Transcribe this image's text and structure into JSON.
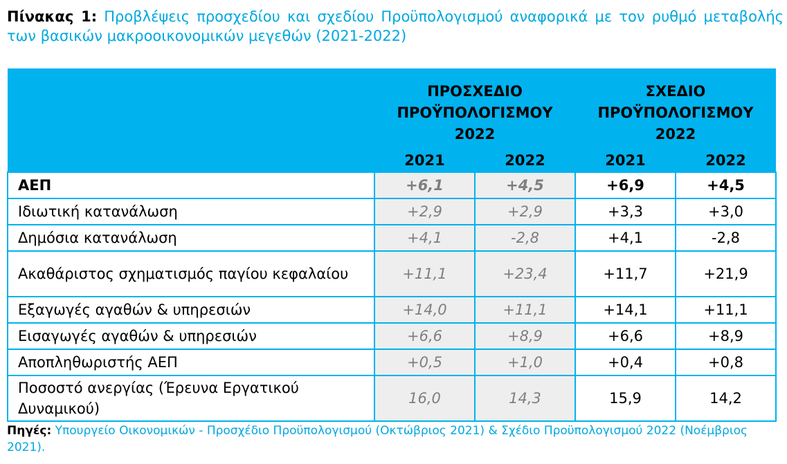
{
  "title": {
    "label": "Πίνακας 1:",
    "text": "Προβλέψεις προσχεδίου και σχεδίου Προϋπολογισμού αναφορικά με τον ρυθμό μεταβολής των βασικών μακροοικονομικών μεγεθών (2021-2022)"
  },
  "table": {
    "group_draft": "ΠΡΟΣΧΕΔΙΟ ΠΡΟΫΠΟΛΟΓΙΣΜΟΥ 2022",
    "group_final": "ΣΧΕΔΙΟ ΠΡΟΫΠΟΛΟΓΙΣΜΟΥ 2022",
    "years": [
      "2021",
      "2022",
      "2021",
      "2022"
    ],
    "rows": [
      {
        "label": "ΑΕΠ",
        "draft_2021": "+6,1",
        "draft_2022": "+4,5",
        "final_2021": "+6,9",
        "final_2022": "+4,5"
      },
      {
        "label": "Ιδιωτική κατανάλωση",
        "draft_2021": "+2,9",
        "draft_2022": "+2,9",
        "final_2021": "+3,3",
        "final_2022": "+3,0"
      },
      {
        "label": "Δημόσια κατανάλωση",
        "draft_2021": "+4,1",
        "draft_2022": "-2,8",
        "final_2021": "+4,1",
        "final_2022": "-2,8"
      },
      {
        "label": "Ακαθάριστος σχηματισμός παγίου κεφαλαίου",
        "draft_2021": "+11,1",
        "draft_2022": "+23,4",
        "final_2021": "+11,7",
        "final_2022": "+21,9"
      },
      {
        "label": "Εξαγωγές αγαθών & υπηρεσιών",
        "draft_2021": "+14,0",
        "draft_2022": "+11,1",
        "final_2021": "+14,1",
        "final_2022": "+11,1"
      },
      {
        "label": "Εισαγωγές αγαθών & υπηρεσιών",
        "draft_2021": "+6,6",
        "draft_2022": "+8,9",
        "final_2021": "+6,6",
        "final_2022": "+8,9"
      },
      {
        "label": "Αποπληθωριστής ΑΕΠ",
        "draft_2021": "+0,5",
        "draft_2022": "+1,0",
        "final_2021": "+0,4",
        "final_2022": "+0,8"
      },
      {
        "label": "Ποσοστό ανεργίας (Έρευνα Εργατικού Δυναμικού)",
        "draft_2021": "16,0",
        "draft_2022": "14,3",
        "final_2021": "15,9",
        "final_2022": "14,2"
      }
    ]
  },
  "sources": {
    "label": "Πηγές:",
    "text": "Υπουργείο Οικονομικών - Προσχέδιο Προϋπολογισμού (Οκτώβριος 2021) & Σχέδιο Προϋπολογισμού 2022 (Νοέμβριος 2021)."
  },
  "colors": {
    "accent": "#00b2ee",
    "link_text": "#00a8e0",
    "projection_bg": "#eeeeee",
    "projection_text": "#7f7f7f"
  }
}
